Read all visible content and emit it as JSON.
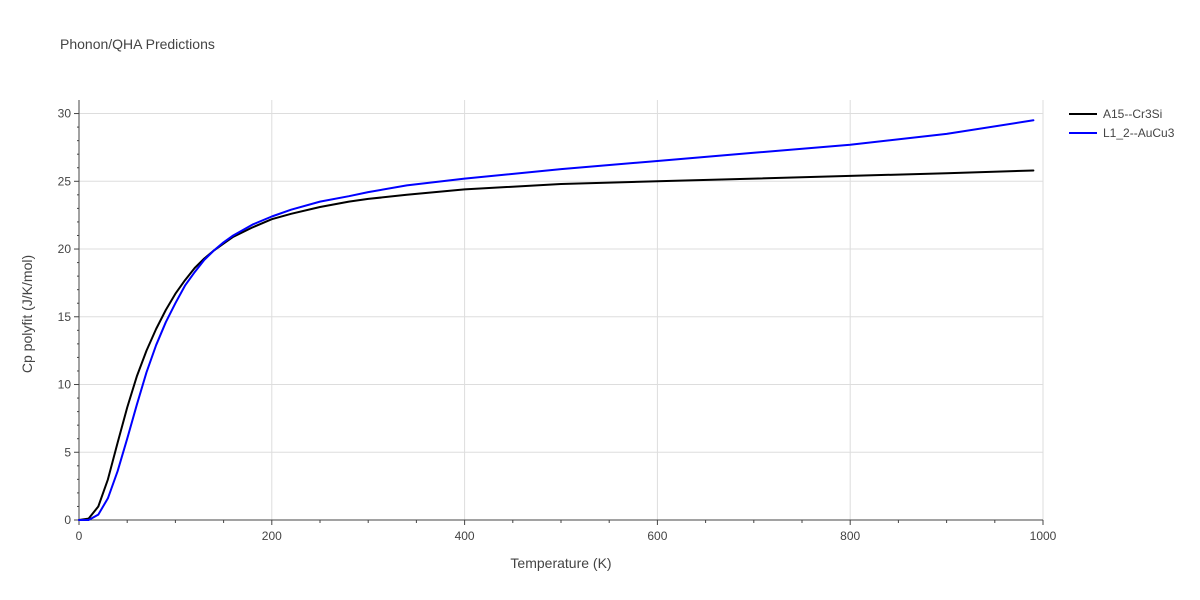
{
  "chart_data": {
    "type": "line",
    "title": "Phonon/QHA Predictions",
    "xlabel": "Temperature (K)",
    "ylabel": "Cp polyfit (J/K/mol)",
    "xlim": [
      0,
      1000
    ],
    "ylim": [
      0,
      31
    ],
    "x_ticks": [
      0,
      200,
      400,
      600,
      800,
      1000
    ],
    "y_ticks": [
      0,
      5,
      10,
      15,
      20,
      25,
      30
    ],
    "grid": true,
    "legend_position": "top-right",
    "series": [
      {
        "name": "A15--Cr3Si",
        "color": "#000000",
        "x": [
          0,
          10,
          20,
          30,
          40,
          50,
          60,
          70,
          80,
          90,
          100,
          110,
          120,
          130,
          140,
          150,
          160,
          180,
          200,
          220,
          250,
          280,
          300,
          340,
          400,
          500,
          600,
          700,
          800,
          900,
          990
        ],
        "y": [
          0,
          0.1,
          1.0,
          3.0,
          5.7,
          8.3,
          10.6,
          12.5,
          14.1,
          15.5,
          16.7,
          17.7,
          18.6,
          19.3,
          19.9,
          20.4,
          20.9,
          21.6,
          22.2,
          22.6,
          23.1,
          23.5,
          23.7,
          24.0,
          24.4,
          24.8,
          25.0,
          25.2,
          25.4,
          25.6,
          25.8
        ]
      },
      {
        "name": "L1_2--AuCu3",
        "color": "#0000ff",
        "x": [
          0,
          10,
          20,
          30,
          40,
          50,
          60,
          70,
          80,
          90,
          100,
          110,
          120,
          130,
          140,
          150,
          160,
          180,
          200,
          220,
          250,
          280,
          300,
          340,
          400,
          500,
          600,
          700,
          800,
          900,
          990
        ],
        "y": [
          0,
          0,
          0.4,
          1.6,
          3.6,
          6.0,
          8.5,
          10.9,
          12.9,
          14.6,
          16.0,
          17.3,
          18.3,
          19.2,
          19.9,
          20.5,
          21.0,
          21.8,
          22.4,
          22.9,
          23.5,
          23.9,
          24.2,
          24.7,
          25.2,
          25.9,
          26.5,
          27.1,
          27.7,
          28.5,
          29.5
        ]
      }
    ]
  }
}
